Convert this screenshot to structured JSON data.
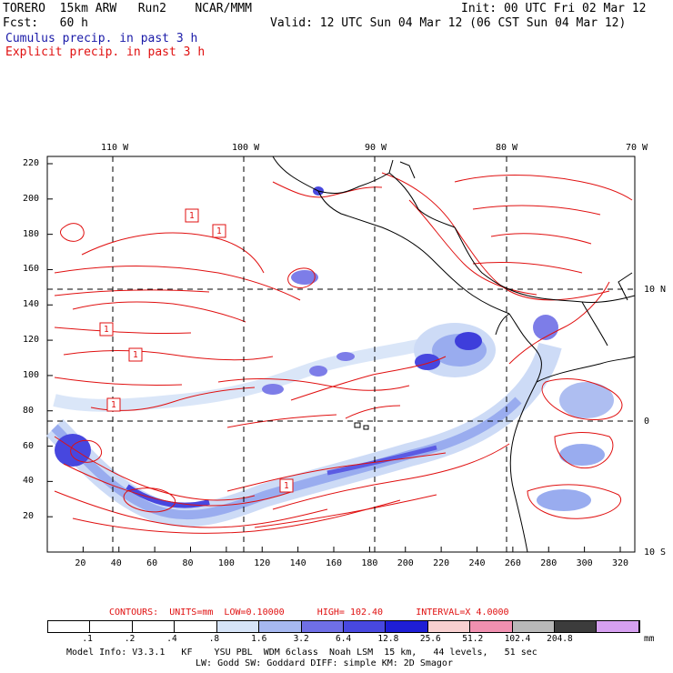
{
  "header": {
    "model_line": "TORERO  15km ARW   Run2    NCAR/MMM",
    "forecast_line": "Fcst:   60 h",
    "init_line": "Init: 00 UTC Fri 02 Mar 12",
    "valid_line": "Valid: 12 UTC Sun 04 Mar 12 (06 CST Sun 04 Mar 12)",
    "legend_cumulus": "Cumulus precip. in past 3 h",
    "legend_explicit": "Explicit precip. in past 3 h"
  },
  "map": {
    "top_lon_labels": [
      "110 W",
      "100 W",
      "90 W",
      "80 W",
      "70 W"
    ],
    "right_lat_labels": [
      "10 N",
      "0",
      "10 S"
    ],
    "left_y_ticks": [
      "220",
      "200",
      "180",
      "160",
      "140",
      "120",
      "100",
      "80",
      "60",
      "40",
      "20"
    ],
    "bottom_x_ticks": [
      "20",
      "40",
      "60",
      "80",
      "100",
      "120",
      "140",
      "160",
      "180",
      "200",
      "220",
      "240",
      "260",
      "280",
      "300",
      "320"
    ],
    "box_labels": [
      "1",
      "1",
      "1",
      "1",
      "1",
      "1"
    ]
  },
  "contour_info": {
    "contours_label": "CONTOURS:  UNITS=mm  LOW=",
    "low_value": "0.10000",
    "high_label": "HIGH=",
    "high_value": "102.40",
    "interval_label": "INTERVAL=X",
    "interval_value": "4.0000"
  },
  "colorbar": {
    "labels": [
      ".1",
      ".2",
      ".4",
      ".8",
      "1.6",
      "3.2",
      "6.4",
      "12.8",
      "25.6",
      "51.2",
      "102.4",
      "204.8"
    ],
    "unit": "mm",
    "colors": [
      "#ffffff",
      "#ffffff",
      "#ffffff",
      "#ffffff",
      "#d6e4f8",
      "#a6b8f0",
      "#6f6fe6",
      "#4848e0",
      "#1e1ed6",
      "#f8d0d0",
      "#f090b0",
      "#b8b8b8",
      "#3c3c3c",
      "#d6a0f0"
    ]
  },
  "footer": {
    "line1": "Model Info: V3.3.1   KF    YSU PBL  WDM 6class  Noah LSM  15 km,   44 levels,   51 sec",
    "line2": "LW: Godd SW: Goddard DIFF: simple KM: 2D Smagor"
  }
}
